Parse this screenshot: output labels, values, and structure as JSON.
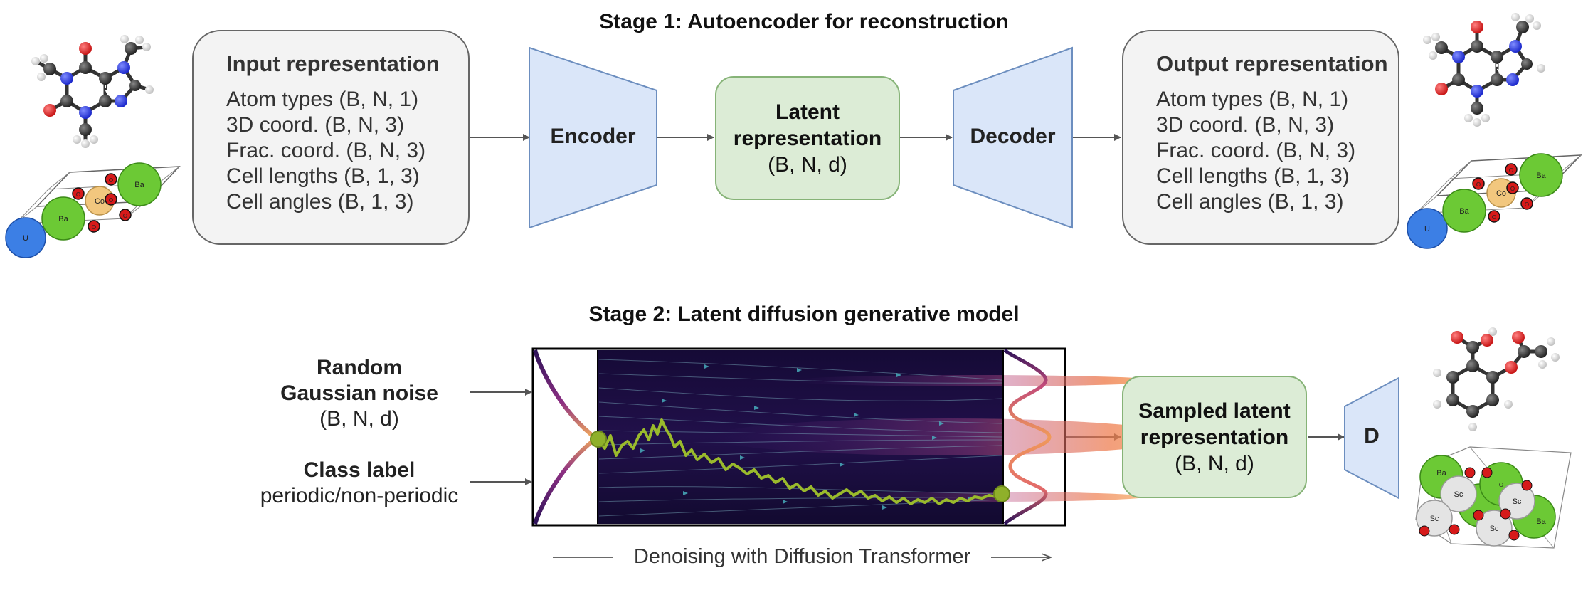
{
  "stage1": {
    "title": "Stage 1: Autoencoder for reconstruction",
    "input": {
      "heading": "Input representation",
      "rows": [
        "Atom types (B, N, 1)",
        "3D coord. (B, N, 3)",
        "Frac. coord. (B, N, 3)",
        "Cell lengths (B, 1, 3)",
        "Cell angles (B, 1, 3)"
      ]
    },
    "encoder_label": "Encoder",
    "latent": {
      "line1": "Latent",
      "line2": "representation",
      "line3": "(B, N, d)"
    },
    "decoder_label": "Decoder",
    "output": {
      "heading": "Output representation",
      "rows": [
        "Atom types (B, N, 1)",
        "3D coord. (B, N, 3)",
        "Frac. coord. (B, N, 3)",
        "Cell lengths (B, 1, 3)",
        "Cell angles (B, 1, 3)"
      ]
    }
  },
  "stage2": {
    "title": "Stage 2: Latent diffusion generative model",
    "noise": {
      "line1": "Random",
      "line2": "Gaussian noise",
      "line3": "(B, N, d)"
    },
    "class_label": {
      "line1": "Class label",
      "line2": "periodic/non-periodic"
    },
    "denoise_caption": "Denoising with Diffusion Transformer",
    "sampled": {
      "line1": "Sampled latent",
      "line2": "representation",
      "line3": "(B, N, d)"
    },
    "d_label": "D"
  },
  "atoms": {
    "top_crystal": [
      "Ba",
      "Ba",
      "Co",
      "U",
      "O",
      "O",
      "O",
      "O",
      "O"
    ],
    "bottom_crystal": [
      "Ba",
      "Ba",
      "Sc",
      "Sc",
      "Sc",
      "Sc",
      "O"
    ]
  },
  "colors": {
    "trapezoid_fill": "#dae6f9",
    "trapezoid_stroke": "#6c8ebf",
    "latent_fill": "#dcecd6",
    "latent_stroke": "#86b377",
    "box_fill": "#f3f3f3",
    "arrow": "#555555",
    "trajectory": "#9aba2c",
    "carbon": "#2e2e2e",
    "nitrogen": "#2233dd",
    "oxygen": "#d61a1a",
    "hydrogen": "#e8e8e8",
    "barium": "#6cc935",
    "uranium": "#3c7fe5",
    "cobalt": "#f2c77e",
    "scandium": "#e4e4e4"
  }
}
